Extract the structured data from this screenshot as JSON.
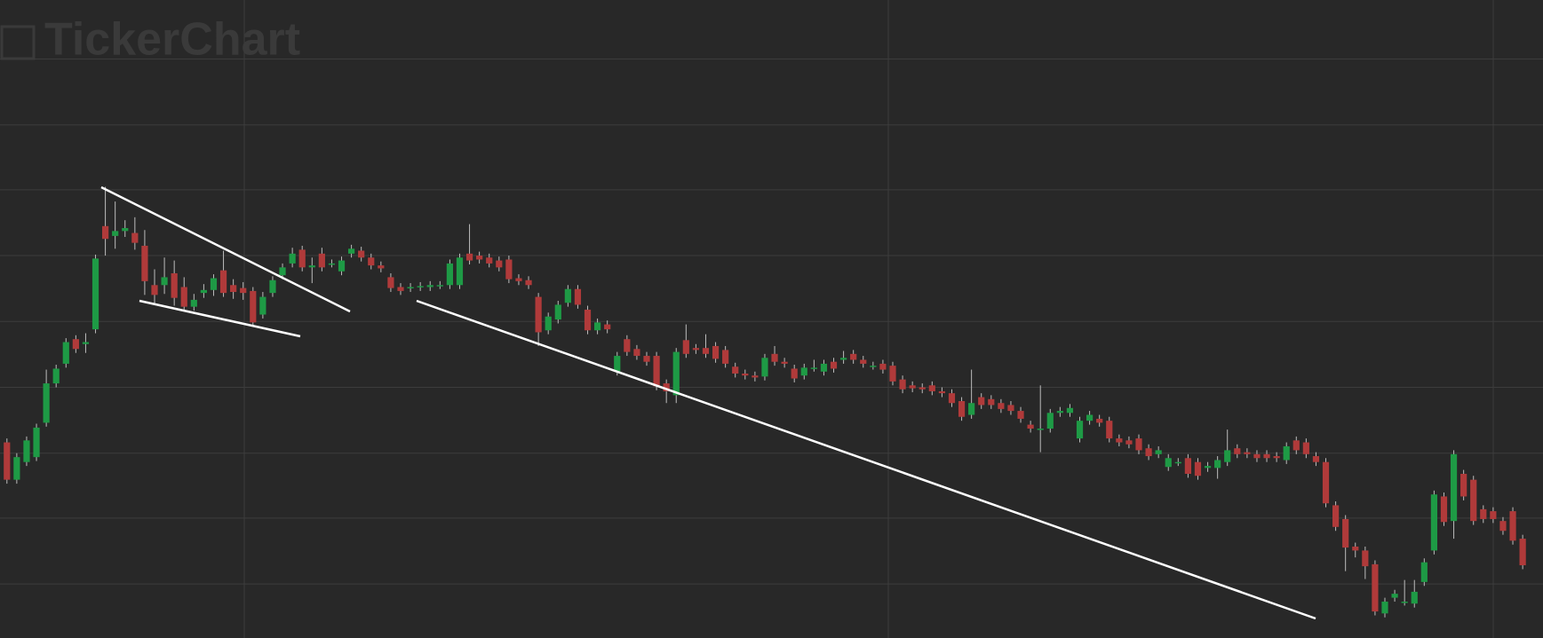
{
  "chart_data": {
    "type": "candlestick",
    "watermark": "TickerChart",
    "open": [
      199,
      161,
      179,
      184,
      219,
      259,
      279,
      304,
      299,
      314,
      419,
      409,
      414,
      412,
      399,
      359,
      359,
      371,
      357,
      337,
      351,
      354,
      374,
      359,
      356,
      353,
      329,
      351,
      369,
      381,
      395,
      377,
      391,
      381,
      373,
      391,
      394,
      387,
      379,
      367,
      357,
      356,
      357,
      357,
      359,
      359,
      359,
      391,
      389,
      387,
      384,
      385,
      366,
      364,
      347,
      313,
      324,
      341,
      355,
      334,
      313,
      319,
      271,
      304,
      294,
      287,
      287,
      259,
      247,
      303,
      295,
      295,
      297,
      293,
      276,
      269,
      267,
      266,
      289,
      281,
      274,
      267,
      275,
      271,
      281,
      283,
      289,
      283,
      277,
      279,
      277,
      263,
      257,
      255,
      257,
      251,
      249,
      241,
      227,
      245,
      243,
      239,
      237,
      231,
      217,
      213,
      213,
      229,
      229,
      203,
      221,
      223,
      221,
      203,
      201,
      203,
      193,
      187,
      174,
      179,
      183,
      179,
      173,
      173,
      179,
      193,
      189,
      187,
      187,
      185,
      181,
      201,
      199,
      185,
      179,
      135,
      121,
      93,
      89,
      75,
      25,
      41,
      37,
      35,
      57,
      89,
      144,
      119,
      167,
      161,
      131,
      129,
      119,
      129,
      101
    ],
    "high": [
      203,
      188,
      205,
      218,
      273,
      278,
      305,
      308,
      310,
      390,
      459,
      444,
      425,
      428,
      415,
      375,
      387,
      384,
      367,
      350,
      360,
      370,
      394,
      365,
      362,
      357,
      352,
      368,
      381,
      397,
      399,
      387,
      397,
      385,
      388,
      400,
      398,
      391,
      383,
      371,
      361,
      361,
      362,
      363,
      363,
      385,
      391,
      421,
      393,
      391,
      388,
      389,
      370,
      368,
      351,
      331,
      343,
      359,
      359,
      338,
      325,
      323,
      291,
      308,
      298,
      291,
      291,
      263,
      295,
      319,
      299,
      309,
      301,
      297,
      280,
      273,
      271,
      289,
      297,
      285,
      278,
      279,
      283,
      283,
      285,
      292,
      293,
      287,
      281,
      283,
      281,
      267,
      261,
      259,
      261,
      255,
      253,
      245,
      273,
      249,
      247,
      243,
      241,
      235,
      221,
      257,
      233,
      235,
      238,
      225,
      231,
      227,
      225,
      207,
      205,
      207,
      197,
      195,
      187,
      183,
      187,
      183,
      179,
      185,
      212,
      197,
      193,
      191,
      191,
      189,
      199,
      205,
      203,
      189,
      183,
      139,
      125,
      97,
      93,
      79,
      41,
      49,
      59,
      59,
      81,
      150,
      148,
      191,
      171,
      165,
      135,
      133,
      123,
      133,
      105
    ],
    "low": [
      157,
      157,
      175,
      180,
      215,
      255,
      275,
      290,
      290,
      310,
      389,
      396,
      408,
      395,
      349,
      340,
      350,
      338,
      333,
      333,
      346,
      348,
      347,
      345,
      344,
      317,
      325,
      347,
      365,
      377,
      373,
      361,
      373,
      377,
      369,
      387,
      383,
      375,
      372,
      352,
      349,
      352,
      353,
      353,
      355,
      355,
      355,
      380,
      381,
      377,
      373,
      361,
      359,
      355,
      297,
      309,
      320,
      337,
      335,
      309,
      309,
      310,
      267,
      287,
      283,
      277,
      252,
      239,
      239,
      285,
      289,
      285,
      280,
      275,
      265,
      263,
      261,
      262,
      277,
      275,
      260,
      263,
      271,
      267,
      270,
      279,
      279,
      275,
      273,
      269,
      257,
      249,
      250,
      249,
      247,
      245,
      235,
      221,
      223,
      233,
      233,
      229,
      227,
      219,
      209,
      189,
      209,
      225,
      225,
      199,
      217,
      215,
      199,
      195,
      193,
      187,
      181,
      183,
      170,
      175,
      163,
      161,
      169,
      162,
      175,
      183,
      183,
      179,
      179,
      179,
      177,
      187,
      183,
      175,
      133,
      109,
      68,
      82,
      60,
      23,
      21,
      37,
      33,
      31,
      53,
      85,
      114,
      101,
      140,
      115,
      117,
      117,
      105,
      95,
      70
    ],
    "close": [
      161,
      184,
      201,
      214,
      259,
      274,
      301,
      294,
      301,
      386,
      406,
      414,
      417,
      402,
      363,
      349,
      367,
      346,
      337,
      344,
      354,
      366,
      351,
      352,
      351,
      321,
      347,
      364,
      377,
      391,
      377,
      379,
      377,
      381,
      384,
      396,
      387,
      379,
      376,
      356,
      353,
      357,
      358,
      359,
      359,
      381,
      387,
      384,
      385,
      381,
      377,
      365,
      363,
      359,
      311,
      327,
      339,
      355,
      339,
      313,
      321,
      314,
      287,
      291,
      287,
      281,
      256,
      251,
      291,
      289,
      293,
      289,
      284,
      279,
      269,
      267,
      265,
      285,
      281,
      279,
      264,
      275,
      275,
      279,
      274,
      285,
      283,
      279,
      277,
      273,
      261,
      253,
      254,
      253,
      251,
      249,
      239,
      225,
      239,
      237,
      237,
      233,
      231,
      223,
      213,
      213,
      229,
      231,
      234,
      221,
      227,
      219,
      203,
      199,
      197,
      191,
      185,
      191,
      183,
      179,
      167,
      165,
      175,
      181,
      191,
      187,
      187,
      183,
      183,
      183,
      195,
      191,
      187,
      179,
      137,
      113,
      92,
      89,
      73,
      27,
      37,
      45,
      37,
      47,
      77,
      146,
      118,
      187,
      144,
      119,
      121,
      121,
      109,
      99,
      74
    ],
    "ylim": [
      0,
      649
    ],
    "yticks": [
      55,
      122,
      188,
      255,
      322,
      389,
      456,
      522,
      589
    ],
    "grid": true,
    "colors": {
      "up": "#1e9a45",
      "down": "#b03a3a"
    }
  }
}
